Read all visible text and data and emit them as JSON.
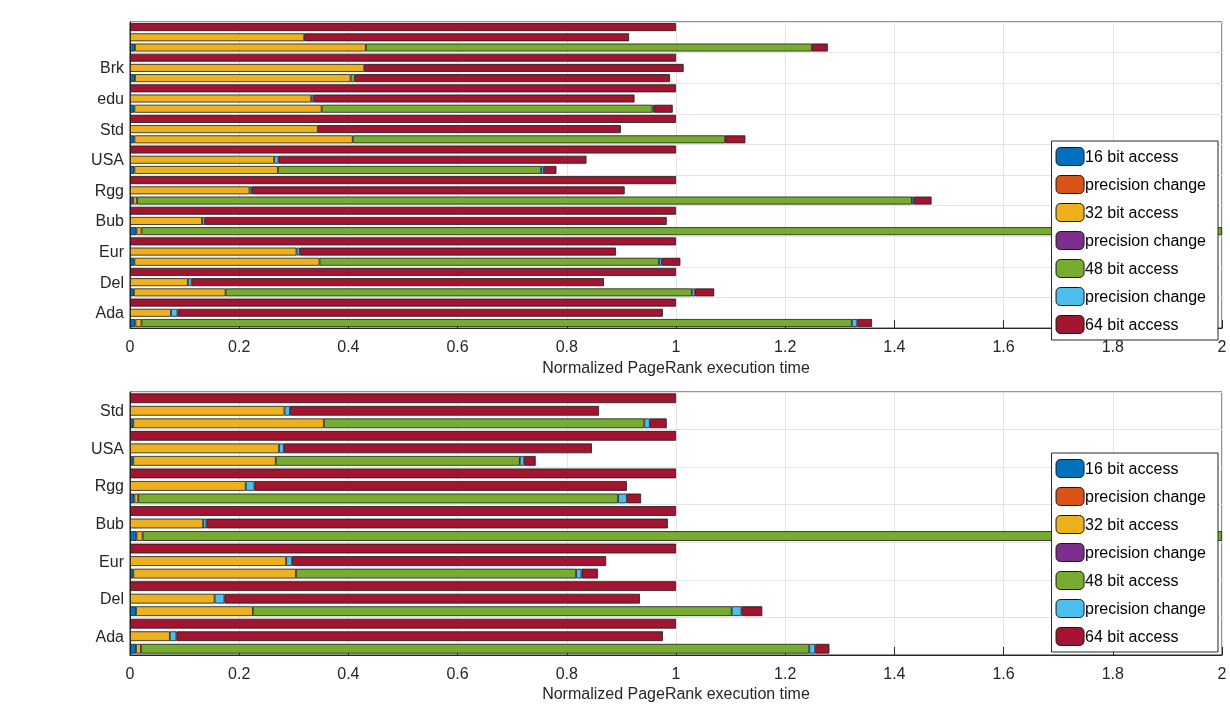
{
  "chart_data": [
    {
      "type": "bar",
      "orientation": "horizontal",
      "stacked": true,
      "xlabel": "Normalized PageRank execution time",
      "xlim": [
        0,
        2
      ],
      "xticks": [
        0,
        0.2,
        0.4,
        0.6,
        0.8,
        1,
        1.2,
        1.4,
        1.6,
        1.8,
        2
      ],
      "grid": true,
      "legend": "bottom right",
      "categories": [
        null,
        null,
        null,
        null,
        "Brk",
        null,
        null,
        "edu",
        null,
        null,
        "Std",
        null,
        null,
        "USA",
        null,
        null,
        "Rgg",
        null,
        null,
        "Bub",
        null,
        null,
        "Eur",
        null,
        null,
        "Del",
        null,
        null,
        "Ada",
        null
      ],
      "series": [
        {
          "name": "16 bit access",
          "color": "#0072bd",
          "values": [
            null,
            null,
            0.009,
            null,
            null,
            0.009,
            null,
            null,
            0.008,
            null,
            null,
            0.008,
            null,
            null,
            0.008,
            null,
            null,
            0.006,
            null,
            null,
            0.012,
            null,
            null,
            0.008,
            null,
            null,
            0.007,
            null,
            null,
            0.01
          ]
        },
        {
          "name": "precision change",
          "color": "#d95319",
          "values": [
            null,
            null,
            null,
            null,
            null,
            null,
            null,
            null,
            null,
            null,
            null,
            null,
            null,
            null,
            null,
            null,
            null,
            null,
            null,
            null,
            null,
            null,
            null,
            null,
            null,
            null,
            null,
            null,
            null,
            null
          ]
        },
        {
          "name": "32 bit access",
          "color": "#edb120",
          "values": [
            null,
            0.319,
            0.423,
            null,
            0.429,
            0.395,
            null,
            0.332,
            0.343,
            null,
            0.344,
            0.4,
            null,
            0.264,
            0.263,
            null,
            0.219,
            0.007,
            null,
            0.132,
            0.009,
            null,
            0.305,
            0.339,
            null,
            0.106,
            0.168,
            null,
            0.075,
            0.011
          ]
        },
        {
          "name": "precision change",
          "color": "#7e2f8e",
          "values": [
            null,
            null,
            null,
            null,
            null,
            null,
            null,
            null,
            null,
            null,
            null,
            null,
            null,
            null,
            null,
            null,
            null,
            null,
            null,
            null,
            null,
            null,
            null,
            null,
            null,
            null,
            null,
            null,
            null,
            null
          ]
        },
        {
          "name": "48 bit access",
          "color": "#77ac30",
          "values": [
            null,
            null,
            0.817,
            null,
            null,
            0.008,
            null,
            null,
            0.606,
            null,
            null,
            0.682,
            null,
            null,
            0.482,
            null,
            null,
            1.419,
            null,
            null,
            1.979,
            null,
            null,
            0.622,
            null,
            null,
            0.854,
            null,
            null,
            1.301
          ]
        },
        {
          "name": "precision change",
          "color": "#4dbeee",
          "values": [
            null,
            null,
            null,
            null,
            null,
            null,
            null,
            0.004,
            0.003,
            null,
            null,
            null,
            null,
            0.008,
            0.005,
            null,
            0.004,
            0.004,
            null,
            0.005,
            null,
            null,
            0.006,
            0.005,
            null,
            0.007,
            0.006,
            null,
            0.012,
            0.01
          ]
        },
        {
          "name": "64 bit access",
          "color": "#a2142f",
          "values": [
            1,
            0.595,
            0.029,
            1,
            0.585,
            0.577,
            1,
            0.588,
            0.034,
            1,
            0.555,
            0.037,
            1,
            0.564,
            0.023,
            1,
            0.683,
            0.032,
            1,
            0.846,
            null,
            1,
            0.579,
            0.034,
            1,
            0.755,
            0.035,
            1,
            0.889,
            0.027
          ]
        }
      ]
    },
    {
      "type": "bar",
      "orientation": "horizontal",
      "stacked": true,
      "xlabel": "Normalized PageRank execution time",
      "xlim": [
        0,
        2
      ],
      "xticks": [
        0,
        0.2,
        0.4,
        0.6,
        0.8,
        1,
        1.2,
        1.4,
        1.6,
        1.8,
        2
      ],
      "grid": true,
      "legend": "bottom right",
      "categories": [
        null,
        "Std",
        null,
        null,
        "USA",
        null,
        null,
        "Rgg",
        null,
        null,
        "Bub",
        null,
        null,
        "Eur",
        null,
        null,
        "Del",
        null,
        null,
        "Ada",
        null
      ],
      "series": [
        {
          "name": "16 bit access",
          "color": "#0072bd",
          "values": [
            null,
            null,
            0.006,
            null,
            null,
            0.006,
            null,
            null,
            0.008,
            null,
            null,
            0.012,
            null,
            null,
            0.006,
            null,
            null,
            0.011,
            null,
            null,
            0.011
          ]
        },
        {
          "name": "precision change",
          "color": "#d95319",
          "values": [
            null,
            null,
            null,
            null,
            null,
            null,
            null,
            null,
            null,
            null,
            null,
            null,
            null,
            null,
            null,
            null,
            null,
            null,
            null,
            null,
            null
          ]
        },
        {
          "name": "32 bit access",
          "color": "#edb120",
          "values": [
            null,
            0.283,
            0.349,
            null,
            0.273,
            0.261,
            null,
            0.212,
            0.007,
            null,
            0.134,
            0.011,
            null,
            0.286,
            0.298,
            null,
            0.155,
            0.214,
            null,
            0.073,
            0.009
          ]
        },
        {
          "name": "precision change",
          "color": "#7e2f8e",
          "values": [
            null,
            null,
            null,
            null,
            null,
            null,
            null,
            null,
            null,
            null,
            null,
            null,
            null,
            null,
            null,
            null,
            null,
            null,
            null,
            null,
            null
          ]
        },
        {
          "name": "48 bit access",
          "color": "#77ac30",
          "values": [
            null,
            null,
            0.587,
            null,
            null,
            0.447,
            null,
            null,
            0.879,
            null,
            null,
            1.977,
            null,
            null,
            0.513,
            null,
            null,
            0.877,
            null,
            null,
            1.224
          ]
        },
        {
          "name": "precision change",
          "color": "#4dbeee",
          "values": [
            null,
            0.01,
            0.01,
            null,
            0.009,
            0.008,
            null,
            0.016,
            0.016,
            null,
            0.006,
            null,
            null,
            0.011,
            0.01,
            null,
            0.018,
            0.018,
            null,
            0.012,
            0.011
          ]
        },
        {
          "name": "64 bit access",
          "color": "#a2142f",
          "values": [
            1,
            0.566,
            0.031,
            1,
            0.564,
            0.021,
            1,
            0.682,
            0.026,
            1,
            0.845,
            null,
            1,
            0.575,
            0.03,
            1,
            0.761,
            0.038,
            1,
            0.891,
            0.026
          ]
        }
      ]
    }
  ]
}
